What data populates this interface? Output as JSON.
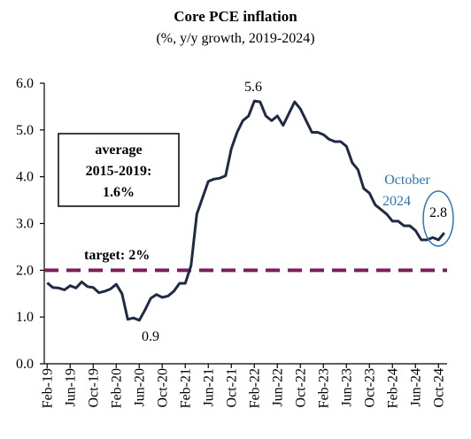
{
  "chart_data": {
    "type": "line",
    "title": "Core PCE inflation",
    "subtitle": "(%, y/y growth, 2019-2024)",
    "xlabel": "",
    "ylabel": "",
    "ylim": [
      0,
      6
    ],
    "y_ticks": [
      "0.0",
      "1.0",
      "2.0",
      "3.0",
      "4.0",
      "5.0",
      "6.0"
    ],
    "x_tick_labels": [
      "Feb-19",
      "Jun-19",
      "Oct-19",
      "Feb-20",
      "Jun-20",
      "Oct-20",
      "Feb-21",
      "Jun-21",
      "Oct-21",
      "Feb-22",
      "Jun-22",
      "Oct-22",
      "Feb-23",
      "Jun-23",
      "Oct-23",
      "Feb-24",
      "Jun-24",
      "Oct-24"
    ],
    "grid": false,
    "series": [
      {
        "color": "#1F2A44",
        "values": [
          1.73,
          1.63,
          1.62,
          1.58,
          1.67,
          1.62,
          1.75,
          1.65,
          1.63,
          1.52,
          1.55,
          1.6,
          1.7,
          1.5,
          0.95,
          0.98,
          0.93,
          1.15,
          1.4,
          1.48,
          1.42,
          1.45,
          1.55,
          1.72,
          1.72,
          2.1,
          3.2,
          3.55,
          3.9,
          3.95,
          3.97,
          4.02,
          4.6,
          4.95,
          5.2,
          5.3,
          5.62,
          5.6,
          5.3,
          5.2,
          5.3,
          5.1,
          5.35,
          5.6,
          5.45,
          5.2,
          4.95,
          4.95,
          4.9,
          4.8,
          4.75,
          4.75,
          4.65,
          4.3,
          4.15,
          3.75,
          3.65,
          3.4,
          3.3,
          3.2,
          3.05,
          3.05,
          2.95,
          2.95,
          2.85,
          2.65,
          2.65,
          2.7,
          2.65,
          2.8
        ]
      }
    ],
    "reference_line": {
      "value": 2.0,
      "label": "target: 2%",
      "color": "#7A1F5C"
    },
    "annotations": {
      "peak_label": "5.6",
      "trough_label": "0.9",
      "average_line1": "average",
      "average_line2": "2015-2019:",
      "average_line3": "1.6%",
      "latest_line1": "October",
      "latest_line2": "2024",
      "latest_value": "2.8",
      "latest_color": "#2E75B6"
    }
  }
}
